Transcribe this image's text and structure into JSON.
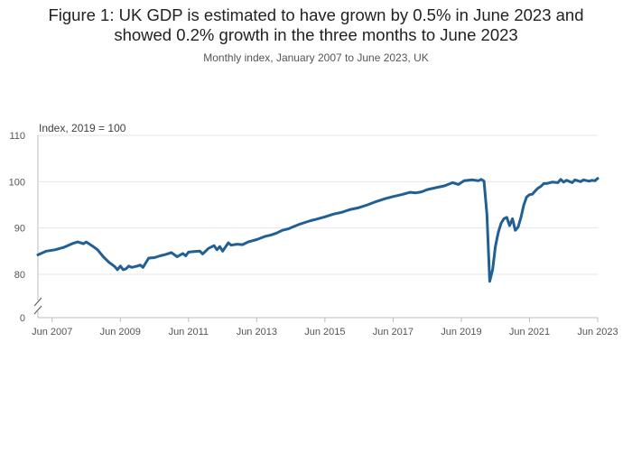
{
  "title": "Figure 1: UK GDP is estimated to have grown by 0.5% in June 2023 and showed 0.2% growth in the three months to June 2023",
  "subtitle": "Monthly index, January 2007 to June 2023, UK",
  "colors": {
    "line": "#206095",
    "grid": "#e6e6e6",
    "axis": "#bcbcbc"
  },
  "chart_data": {
    "type": "line",
    "title": "Figure 1: UK GDP is estimated to have grown by 0.5% in June 2023 and showed 0.2% growth in the three months to June 2023",
    "subtitle": "Monthly index, January 2007 to June 2023, UK",
    "ylabel": "Index, 2019 = 100",
    "xlabel": "",
    "x_range": [
      "2007-01",
      "2023-06"
    ],
    "y_break": {
      "below": 0,
      "above": 75
    },
    "ylim": [
      75,
      110
    ],
    "y_ticks": [
      0,
      80,
      90,
      100,
      110
    ],
    "x_ticks": [
      "Jun 2007",
      "Jun 2009",
      "Jun 2011",
      "Jun 2013",
      "Jun 2015",
      "Jun 2017",
      "Jun 2019",
      "Jun 2021",
      "Jun 2023"
    ],
    "grid": true,
    "legend": "none",
    "series": [
      {
        "color": "#206095",
        "points": [
          [
            "2007-01",
            84.2
          ],
          [
            "2007-04",
            85.0
          ],
          [
            "2007-07",
            85.3
          ],
          [
            "2007-10",
            85.8
          ],
          [
            "2008-01",
            86.6
          ],
          [
            "2008-03",
            87.0
          ],
          [
            "2008-05",
            86.6
          ],
          [
            "2008-06",
            87.0
          ],
          [
            "2008-08",
            86.2
          ],
          [
            "2008-10",
            85.3
          ],
          [
            "2008-12",
            83.8
          ],
          [
            "2009-02",
            82.6
          ],
          [
            "2009-04",
            81.7
          ],
          [
            "2009-05",
            81.0
          ],
          [
            "2009-06",
            81.8
          ],
          [
            "2009-07",
            81.0
          ],
          [
            "2009-08",
            81.2
          ],
          [
            "2009-09",
            81.8
          ],
          [
            "2009-10",
            81.5
          ],
          [
            "2009-12",
            81.8
          ],
          [
            "2010-01",
            82.0
          ],
          [
            "2010-02",
            81.5
          ],
          [
            "2010-04",
            83.5
          ],
          [
            "2010-06",
            83.6
          ],
          [
            "2010-08",
            84.0
          ],
          [
            "2010-10",
            84.3
          ],
          [
            "2010-12",
            84.7
          ],
          [
            "2011-02",
            83.8
          ],
          [
            "2011-04",
            84.5
          ],
          [
            "2011-05",
            84.0
          ],
          [
            "2011-06",
            84.8
          ],
          [
            "2011-08",
            84.9
          ],
          [
            "2011-10",
            85.0
          ],
          [
            "2011-11",
            84.4
          ],
          [
            "2012-01",
            85.6
          ],
          [
            "2012-03",
            86.2
          ],
          [
            "2012-04",
            85.3
          ],
          [
            "2012-05",
            86.0
          ],
          [
            "2012-06",
            85.0
          ],
          [
            "2012-08",
            86.8
          ],
          [
            "2012-09",
            86.3
          ],
          [
            "2012-11",
            86.5
          ],
          [
            "2013-01",
            86.4
          ],
          [
            "2013-03",
            87.0
          ],
          [
            "2013-06",
            87.5
          ],
          [
            "2013-09",
            88.2
          ],
          [
            "2013-11",
            88.5
          ],
          [
            "2014-01",
            88.9
          ],
          [
            "2014-03",
            89.5
          ],
          [
            "2014-05",
            89.8
          ],
          [
            "2014-07",
            90.3
          ],
          [
            "2014-09",
            90.8
          ],
          [
            "2014-11",
            91.2
          ],
          [
            "2015-01",
            91.6
          ],
          [
            "2015-03",
            91.9
          ],
          [
            "2015-06",
            92.4
          ],
          [
            "2015-09",
            93.0
          ],
          [
            "2015-12",
            93.4
          ],
          [
            "2016-03",
            94.0
          ],
          [
            "2016-06",
            94.4
          ],
          [
            "2016-09",
            95.0
          ],
          [
            "2016-12",
            95.7
          ],
          [
            "2017-03",
            96.3
          ],
          [
            "2017-06",
            96.8
          ],
          [
            "2017-09",
            97.2
          ],
          [
            "2017-12",
            97.7
          ],
          [
            "2018-02",
            97.6
          ],
          [
            "2018-04",
            97.8
          ],
          [
            "2018-06",
            98.3
          ],
          [
            "2018-09",
            98.7
          ],
          [
            "2018-12",
            99.1
          ],
          [
            "2019-03",
            99.8
          ],
          [
            "2019-05",
            99.4
          ],
          [
            "2019-07",
            100.2
          ],
          [
            "2019-10",
            100.4
          ],
          [
            "2019-12",
            100.2
          ],
          [
            "2020-01",
            100.5
          ],
          [
            "2020-02",
            100.1
          ],
          [
            "2020-03",
            93.0
          ],
          [
            "2020-04",
            78.5
          ],
          [
            "2020-05",
            81.0
          ],
          [
            "2020-06",
            86.0
          ],
          [
            "2020-07",
            89.0
          ],
          [
            "2020-08",
            91.0
          ],
          [
            "2020-09",
            92.0
          ],
          [
            "2020-10",
            92.3
          ],
          [
            "2020-11",
            90.5
          ],
          [
            "2020-12",
            92.0
          ],
          [
            "2021-01",
            89.5
          ],
          [
            "2021-02",
            90.2
          ],
          [
            "2021-03",
            92.3
          ],
          [
            "2021-04",
            95.0
          ],
          [
            "2021-05",
            96.7
          ],
          [
            "2021-06",
            97.2
          ],
          [
            "2021-07",
            97.3
          ],
          [
            "2021-08",
            98.0
          ],
          [
            "2021-09",
            98.6
          ],
          [
            "2021-10",
            99.0
          ],
          [
            "2021-11",
            99.6
          ],
          [
            "2021-12",
            99.6
          ],
          [
            "2022-02",
            99.9
          ],
          [
            "2022-04",
            99.8
          ],
          [
            "2022-05",
            100.5
          ],
          [
            "2022-06",
            99.9
          ],
          [
            "2022-07",
            100.3
          ],
          [
            "2022-09",
            99.8
          ],
          [
            "2022-10",
            100.4
          ],
          [
            "2022-12",
            100.0
          ],
          [
            "2023-01",
            100.4
          ],
          [
            "2023-03",
            100.1
          ],
          [
            "2023-04",
            100.3
          ],
          [
            "2023-05",
            100.2
          ],
          [
            "2023-06",
            100.7
          ]
        ]
      }
    ]
  }
}
